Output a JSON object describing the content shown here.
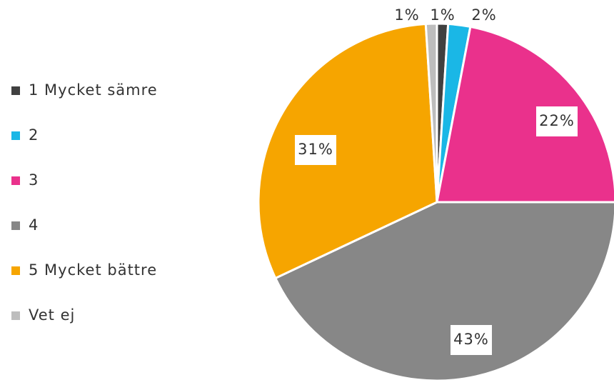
{
  "chart_data": {
    "type": "pie",
    "categories": [
      "1 Mycket sämre",
      "2",
      "3",
      "4",
      "5 Mycket bättre",
      "Vet ej"
    ],
    "values": [
      1,
      2,
      22,
      43,
      31,
      1
    ],
    "value_labels": [
      "1%",
      "2%",
      "22%",
      "43%",
      "31%",
      "1%"
    ],
    "colors": [
      "#404040",
      "#1ab7e6",
      "#ea318c",
      "#878787",
      "#f6a500",
      "#bdbdbd"
    ],
    "legend": "left"
  }
}
